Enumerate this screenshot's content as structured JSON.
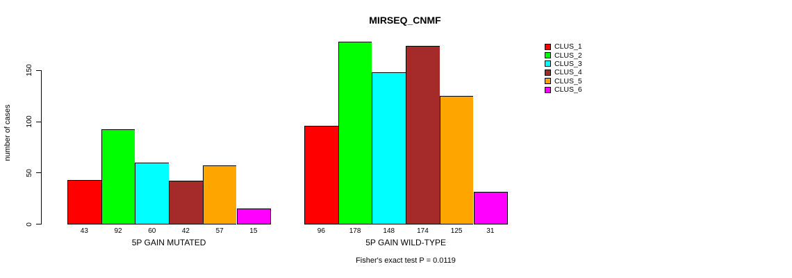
{
  "chart_data": {
    "type": "bar",
    "title": "MIRSEQ_CNMF",
    "xlabel": "",
    "ylabel": "number of cases",
    "yticks": [
      0,
      50,
      100,
      150
    ],
    "ylim": [
      0,
      180
    ],
    "grid": false,
    "legend_position": "right",
    "categories": [
      "CLUS_1",
      "CLUS_2",
      "CLUS_3",
      "CLUS_4",
      "CLUS_5",
      "CLUS_6"
    ],
    "series_colors": [
      "#FF0000",
      "#00FF00",
      "#00FFFF",
      "#A52A2A",
      "#FFA500",
      "#FF00FF"
    ],
    "groups": [
      {
        "label": "5P GAIN MUTATED",
        "values": [
          43,
          92,
          60,
          42,
          57,
          15
        ]
      },
      {
        "label": "5P GAIN WILD-TYPE",
        "values": [
          96,
          178,
          148,
          174,
          125,
          31
        ]
      }
    ],
    "legend": [
      {
        "label": "CLUS_1",
        "color": "#FF0000"
      },
      {
        "label": "CLUS_2",
        "color": "#00FF00"
      },
      {
        "label": "CLUS_3",
        "color": "#00FFFF"
      },
      {
        "label": "CLUS_4",
        "color": "#A52A2A"
      },
      {
        "label": "CLUS_5",
        "color": "#FFA500"
      },
      {
        "label": "CLUS_6",
        "color": "#FF00FF"
      }
    ],
    "annotation": "Fisher's exact test P = 0.0119"
  }
}
